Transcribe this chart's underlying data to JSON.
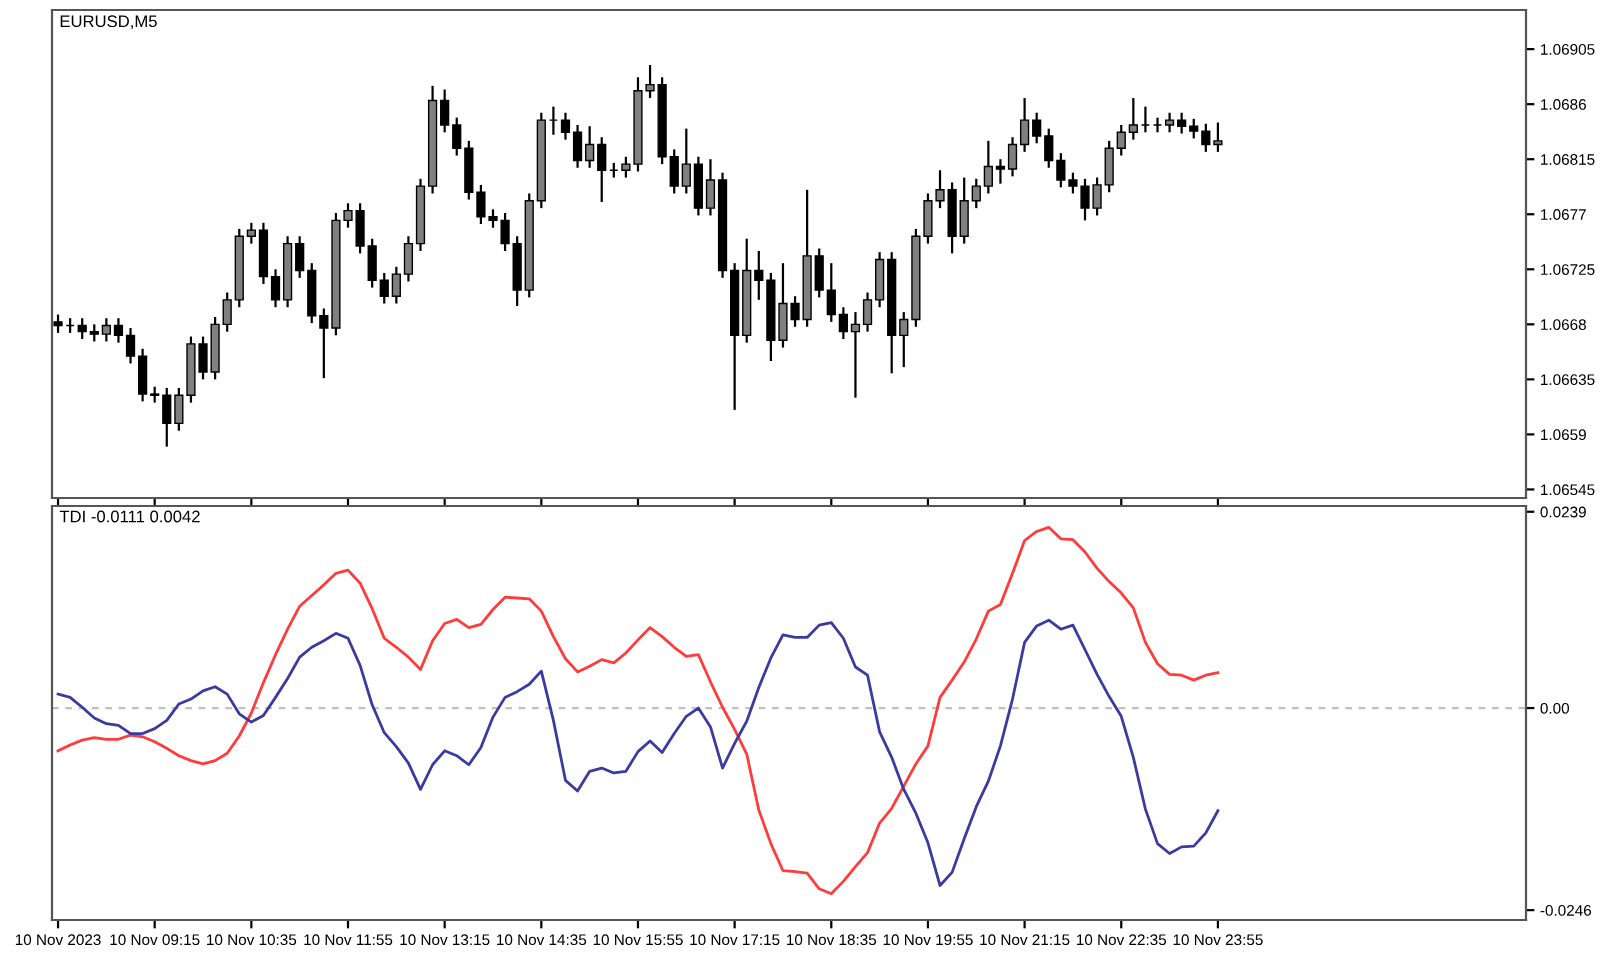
{
  "chart_data": [
    {
      "type": "candlestick",
      "title": "EURUSD,M5",
      "tick_labels": "y",
      "grid": false,
      "ylim": [
        1.06538,
        1.06937
      ],
      "yticks": [
        1.06545,
        1.0659,
        1.06635,
        1.0668,
        1.06725,
        1.0677,
        1.06815,
        1.0686,
        1.06905
      ],
      "categories": [
        null,
        null,
        null,
        null,
        null,
        null,
        null,
        null,
        null,
        null,
        null,
        null,
        null,
        null,
        null,
        null,
        null,
        null,
        null,
        null,
        null,
        null,
        null,
        null,
        null,
        null,
        null,
        null,
        null,
        null,
        null,
        null,
        null,
        null,
        null,
        null,
        null,
        null,
        null,
        null,
        null,
        null,
        null,
        null,
        null,
        null,
        null,
        null,
        null,
        null,
        null,
        null,
        null,
        null,
        null,
        null,
        null,
        null,
        null,
        null,
        null,
        null,
        null,
        null,
        null,
        null,
        null,
        null,
        null,
        null,
        null,
        null,
        null,
        null,
        null,
        null,
        null,
        null,
        null,
        null,
        null,
        null,
        null,
        null,
        null,
        null,
        null,
        null,
        null,
        null,
        null,
        null,
        null,
        null,
        null,
        null,
        null,
        null,
        null,
        null,
        null,
        null,
        null,
        null,
        null,
        null,
        null,
        null,
        null,
        null,
        null,
        null,
        null,
        null,
        null,
        null,
        null,
        null,
        null,
        null,
        null,
        null
      ],
      "ohlc": [
        [
          1.06682,
          1.06688,
          1.06673,
          1.06679
        ],
        [
          1.06679,
          1.06685,
          1.06673,
          1.06679
        ],
        [
          1.06679,
          1.06685,
          1.06668,
          1.06674
        ],
        [
          1.06674,
          1.0668,
          1.06666,
          1.06672
        ],
        [
          1.06672,
          1.06685,
          1.06666,
          1.06679
        ],
        [
          1.06679,
          1.06685,
          1.06665,
          1.06671
        ],
        [
          1.06671,
          1.06677,
          1.06648,
          1.06654
        ],
        [
          1.06654,
          1.0666,
          1.06617,
          1.06623
        ],
        [
          1.06623,
          1.06629,
          1.06616,
          1.06622
        ],
        [
          1.06622,
          1.06628,
          1.0658,
          1.06599
        ],
        [
          1.06599,
          1.06628,
          1.06593,
          1.06622
        ],
        [
          1.06622,
          1.0667,
          1.06616,
          1.06664
        ],
        [
          1.06664,
          1.0667,
          1.06635,
          1.06641
        ],
        [
          1.06641,
          1.06686,
          1.06635,
          1.0668
        ],
        [
          1.0668,
          1.06706,
          1.06674,
          1.067
        ],
        [
          1.067,
          1.06758,
          1.06694,
          1.06752
        ],
        [
          1.06752,
          1.06763,
          1.06746,
          1.06757
        ],
        [
          1.06757,
          1.06763,
          1.06713,
          1.06719
        ],
        [
          1.06719,
          1.06725,
          1.06694,
          1.067
        ],
        [
          1.067,
          1.06752,
          1.06694,
          1.06746
        ],
        [
          1.06746,
          1.06752,
          1.06718,
          1.06724
        ],
        [
          1.06724,
          1.0673,
          1.06681,
          1.06687
        ],
        [
          1.06687,
          1.06693,
          1.06636,
          1.06677
        ],
        [
          1.06677,
          1.06771,
          1.06671,
          1.06765
        ],
        [
          1.06765,
          1.06779,
          1.06759,
          1.06773
        ],
        [
          1.06773,
          1.06779,
          1.06738,
          1.06744
        ],
        [
          1.06744,
          1.0675,
          1.0671,
          1.06716
        ],
        [
          1.06716,
          1.06722,
          1.06697,
          1.06703
        ],
        [
          1.06703,
          1.06727,
          1.06697,
          1.06721
        ],
        [
          1.06721,
          1.06752,
          1.06715,
          1.06746
        ],
        [
          1.06746,
          1.06799,
          1.0674,
          1.06793
        ],
        [
          1.06793,
          1.06875,
          1.06787,
          1.06863
        ],
        [
          1.06863,
          1.06872,
          1.06837,
          1.06843
        ],
        [
          1.06843,
          1.06849,
          1.06818,
          1.06824
        ],
        [
          1.06824,
          1.0683,
          1.06782,
          1.06788
        ],
        [
          1.06788,
          1.06794,
          1.06762,
          1.06768
        ],
        [
          1.06768,
          1.06774,
          1.06759,
          1.06765
        ],
        [
          1.06765,
          1.06771,
          1.0674,
          1.06746
        ],
        [
          1.06746,
          1.06752,
          1.06695,
          1.06708
        ],
        [
          1.06708,
          1.06787,
          1.06702,
          1.06781
        ],
        [
          1.06781,
          1.06853,
          1.06775,
          1.06847
        ],
        [
          1.06847,
          1.06858,
          1.06835,
          1.06847
        ],
        [
          1.06847,
          1.06853,
          1.06831,
          1.06837
        ],
        [
          1.06837,
          1.06843,
          1.06808,
          1.06814
        ],
        [
          1.06814,
          1.06842,
          1.06808,
          1.06827
        ],
        [
          1.06827,
          1.06833,
          1.0678,
          1.06806
        ],
        [
          1.06806,
          1.06812,
          1.068,
          1.06806
        ],
        [
          1.06806,
          1.06817,
          1.068,
          1.06811
        ],
        [
          1.06811,
          1.06882,
          1.06805,
          1.06871
        ],
        [
          1.06871,
          1.06892,
          1.06865,
          1.06876
        ],
        [
          1.06876,
          1.06882,
          1.06811,
          1.06817
        ],
        [
          1.06817,
          1.06823,
          1.06787,
          1.06793
        ],
        [
          1.06793,
          1.0684,
          1.06787,
          1.06811
        ],
        [
          1.06811,
          1.06817,
          1.06769,
          1.06775
        ],
        [
          1.06775,
          1.06815,
          1.06769,
          1.06798
        ],
        [
          1.06798,
          1.06804,
          1.06718,
          1.06724
        ],
        [
          1.06724,
          1.0673,
          1.0661,
          1.06671
        ],
        [
          1.06671,
          1.0675,
          1.06665,
          1.06724
        ],
        [
          1.06724,
          1.0674,
          1.067,
          1.06716
        ],
        [
          1.06716,
          1.06722,
          1.0665,
          1.06667
        ],
        [
          1.06667,
          1.0673,
          1.06661,
          1.06697
        ],
        [
          1.06697,
          1.06703,
          1.06678,
          1.06684
        ],
        [
          1.06684,
          1.0679,
          1.06678,
          1.06736
        ],
        [
          1.06736,
          1.06742,
          1.06702,
          1.06708
        ],
        [
          1.06708,
          1.0673,
          1.06682,
          1.06688
        ],
        [
          1.06688,
          1.06694,
          1.06668,
          1.06674
        ],
        [
          1.06674,
          1.0669,
          1.0662,
          1.0668
        ],
        [
          1.0668,
          1.06706,
          1.06674,
          1.067
        ],
        [
          1.067,
          1.06739,
          1.06694,
          1.06733
        ],
        [
          1.06733,
          1.06739,
          1.0664,
          1.06671
        ],
        [
          1.06671,
          1.0669,
          1.06645,
          1.06684
        ],
        [
          1.06684,
          1.06758,
          1.06678,
          1.06752
        ],
        [
          1.06752,
          1.06787,
          1.06746,
          1.06781
        ],
        [
          1.06781,
          1.06806,
          1.06775,
          1.0679
        ],
        [
          1.0679,
          1.06796,
          1.06738,
          1.06752
        ],
        [
          1.06752,
          1.068,
          1.06746,
          1.06781
        ],
        [
          1.06781,
          1.06799,
          1.06775,
          1.06793
        ],
        [
          1.06793,
          1.0683,
          1.06787,
          1.06809
        ],
        [
          1.06809,
          1.06815,
          1.06795,
          1.06807
        ],
        [
          1.06807,
          1.06833,
          1.06801,
          1.06827
        ],
        [
          1.06827,
          1.06865,
          1.06821,
          1.06847
        ],
        [
          1.06847,
          1.06853,
          1.06828,
          1.06834
        ],
        [
          1.06834,
          1.0684,
          1.06808,
          1.06814
        ],
        [
          1.06814,
          1.0682,
          1.06792,
          1.06798
        ],
        [
          1.06798,
          1.06804,
          1.06787,
          1.06793
        ],
        [
          1.06793,
          1.06799,
          1.06765,
          1.06775
        ],
        [
          1.06775,
          1.068,
          1.06769,
          1.06794
        ],
        [
          1.06794,
          1.0683,
          1.06788,
          1.06824
        ],
        [
          1.06824,
          1.06843,
          1.06818,
          1.06837
        ],
        [
          1.06837,
          1.06865,
          1.06831,
          1.06843
        ],
        [
          1.06843,
          1.06858,
          1.06837,
          1.06843
        ],
        [
          1.06843,
          1.06849,
          1.06837,
          1.06843
        ],
        [
          1.06843,
          1.06853,
          1.06837,
          1.06847
        ],
        [
          1.06847,
          1.06853,
          1.06836,
          1.06842
        ],
        [
          1.06842,
          1.06848,
          1.06832,
          1.06838
        ],
        [
          1.06838,
          1.06844,
          1.06821,
          1.06827
        ],
        [
          1.06827,
          1.06845,
          1.06821,
          1.0683
        ],
        null,
        null,
        null,
        null,
        null,
        null,
        null,
        null,
        null,
        null,
        null,
        null,
        null,
        null,
        null,
        null,
        null,
        null,
        null,
        null,
        null,
        null,
        null,
        null,
        null
      ],
      "colors": [
        "#000000",
        "#000000",
        "#000000",
        "#000000",
        "#808080",
        "#000000",
        "#000000",
        "#000000",
        "#000000",
        "#000000",
        "#808080",
        "#808080",
        "#000000",
        "#808080",
        "#808080",
        "#808080",
        "#808080",
        "#000000",
        "#000000",
        "#808080",
        "#000000",
        "#000000",
        "#000000",
        "#808080",
        "#808080",
        "#000000",
        "#000000",
        "#000000",
        "#808080",
        "#808080",
        "#808080",
        "#808080",
        "#000000",
        "#000000",
        "#000000",
        "#000000",
        "#000000",
        "#000000",
        "#000000",
        "#808080",
        "#808080",
        "#000000",
        "#000000",
        "#000000",
        "#808080",
        "#000000",
        "#000000",
        "#808080",
        "#808080",
        "#808080",
        "#000000",
        "#000000",
        "#808080",
        "#000000",
        "#808080",
        "#000000",
        "#000000",
        "#808080",
        "#000000",
        "#000000",
        "#808080",
        "#000000",
        "#808080",
        "#000000",
        "#000000",
        "#000000",
        "#808080",
        "#808080",
        "#808080",
        "#000000",
        "#808080",
        "#808080",
        "#808080",
        "#808080",
        "#000000",
        "#808080",
        "#808080",
        "#808080",
        "#000000",
        "#808080",
        "#808080",
        "#000000",
        "#000000",
        "#000000",
        "#000000",
        "#000000",
        "#808080",
        "#808080",
        "#808080",
        "#808080",
        "#000000",
        "#000000",
        "#808080",
        "#000000",
        "#000000",
        "#000000",
        "#808080",
        null,
        null,
        null,
        null,
        null,
        null,
        null,
        null,
        null,
        null,
        null,
        null,
        null,
        null,
        null,
        null,
        null,
        null,
        null,
        null,
        null,
        null,
        null,
        null,
        null
      ]
    },
    {
      "type": "line",
      "title": "TDI -0.0111 0.0042",
      "grid": false,
      "marker": "none",
      "line_style": "solid",
      "ylim": [
        -0.0258,
        0.0246
      ],
      "yticks": [
        -0.0246,
        {
          "value": 0,
          "label": "0.00"
        },
        0.0239
      ],
      "categories": [
        "10 Nov 2023",
        null,
        null,
        null,
        null,
        null,
        null,
        null,
        "10 Nov 09:15",
        null,
        null,
        null,
        null,
        null,
        null,
        null,
        "10 Nov 10:35",
        null,
        null,
        null,
        null,
        null,
        null,
        null,
        "10 Nov 11:55",
        null,
        null,
        null,
        null,
        null,
        null,
        null,
        "10 Nov 13:15",
        null,
        null,
        null,
        null,
        null,
        null,
        null,
        "10 Nov 14:35",
        null,
        null,
        null,
        null,
        null,
        null,
        null,
        "10 Nov 15:55",
        null,
        null,
        null,
        null,
        null,
        null,
        null,
        "10 Nov 17:15",
        null,
        null,
        null,
        null,
        null,
        null,
        null,
        "10 Nov 18:35",
        null,
        null,
        null,
        null,
        null,
        null,
        null,
        "10 Nov 19:55",
        null,
        null,
        null,
        null,
        null,
        null,
        null,
        "10 Nov 21:15",
        null,
        null,
        null,
        null,
        null,
        null,
        null,
        "10 Nov 22:35",
        null,
        null,
        null,
        null,
        null,
        null,
        null,
        "10 Nov 23:55",
        null,
        null,
        null,
        null,
        null,
        null,
        null,
        null,
        null,
        null,
        null,
        null,
        null,
        null,
        null,
        null,
        null,
        null,
        null,
        null,
        null,
        null,
        null,
        null,
        null
      ],
      "ref_lines": [
        {
          "axis": "y",
          "value": 0,
          "label": null,
          "color": "#c0c0c0",
          "line_style": "dashed"
        }
      ],
      "series": [
        {
          "color": "#ff3b3b",
          "values": [
            -0.0052,
            -0.0045,
            -0.0039,
            -0.0036,
            -0.0038,
            -0.0038,
            -0.0033,
            -0.0035,
            -0.0041,
            -0.0049,
            -0.0058,
            -0.0064,
            -0.0068,
            -0.0064,
            -0.0055,
            -0.0034,
            -0.0006,
            0.0031,
            0.0065,
            0.0096,
            0.0124,
            0.0137,
            0.015,
            0.0164,
            0.0168,
            0.0152,
            0.0121,
            0.0085,
            0.0074,
            0.0062,
            0.0047,
            0.0082,
            0.0103,
            0.0108,
            0.0098,
            0.0102,
            0.012,
            0.0135,
            0.0134,
            0.0133,
            0.0118,
            0.0087,
            0.006,
            0.0044,
            0.0051,
            0.0059,
            0.0055,
            0.0067,
            0.0083,
            0.0098,
            0.0087,
            0.0074,
            0.0063,
            0.0065,
            0.0032,
            0.0001,
            -0.0026,
            -0.0056,
            -0.0124,
            -0.0165,
            -0.0198,
            -0.0199,
            -0.0201,
            -0.022,
            -0.0226,
            -0.0211,
            -0.0193,
            -0.0176,
            -0.014,
            -0.0122,
            -0.0095,
            -0.0068,
            -0.0046,
            0.0013,
            0.0034,
            0.0056,
            0.0084,
            0.0118,
            0.0126,
            0.0164,
            0.0204,
            0.0215,
            0.022,
            0.0206,
            0.0205,
            0.019,
            0.017,
            0.0154,
            0.014,
            0.0122,
            0.008,
            0.0054,
            0.0041,
            0.004,
            0.0034,
            0.004,
            0.0043,
            null,
            null,
            null,
            null,
            null,
            null,
            null,
            null,
            null,
            null,
            null,
            null,
            null,
            null,
            null,
            null,
            null,
            null,
            null,
            null,
            null,
            null,
            null,
            null,
            null
          ]
        },
        {
          "color": "#3a3aa0",
          "values": [
            0.0017,
            0.0013,
            0.0001,
            -0.0012,
            -0.0019,
            -0.0021,
            -0.0031,
            -0.0031,
            -0.0025,
            -0.0015,
            0.0005,
            0.0011,
            0.0021,
            0.0026,
            0.0017,
            -0.0007,
            -0.0017,
            -0.0009,
            0.0013,
            0.0036,
            0.0062,
            0.0074,
            0.0082,
            0.0091,
            0.0085,
            0.0052,
            0.0004,
            -0.003,
            -0.0047,
            -0.0067,
            -0.0099,
            -0.0069,
            -0.0052,
            -0.0058,
            -0.0069,
            -0.0048,
            -0.0011,
            0.0013,
            0.002,
            0.0029,
            0.0045,
            -0.0015,
            -0.0088,
            -0.0101,
            -0.0077,
            -0.0073,
            -0.0079,
            -0.0077,
            -0.0053,
            -0.004,
            -0.0054,
            -0.0031,
            -0.001,
            0.0,
            -0.0023,
            -0.0073,
            -0.0043,
            -0.0016,
            0.0025,
            0.0061,
            0.0089,
            0.0086,
            0.0086,
            0.0101,
            0.0104,
            0.0085,
            0.005,
            0.004,
            -0.0029,
            -0.006,
            -0.0099,
            -0.0128,
            -0.0164,
            -0.0216,
            -0.02,
            -0.0159,
            -0.012,
            -0.0089,
            -0.0046,
            0.0011,
            0.008,
            0.01,
            0.0107,
            0.0096,
            0.0101,
            0.0071,
            0.0041,
            0.0014,
            -0.001,
            -0.006,
            -0.0123,
            -0.0165,
            -0.0177,
            -0.0169,
            -0.0168,
            -0.0152,
            -0.0125,
            null,
            null,
            null,
            null,
            null,
            null,
            null,
            null,
            null,
            null,
            null,
            null,
            null,
            null,
            null,
            null,
            null,
            null,
            null,
            null,
            null,
            null,
            null,
            null,
            null
          ]
        }
      ]
    }
  ]
}
